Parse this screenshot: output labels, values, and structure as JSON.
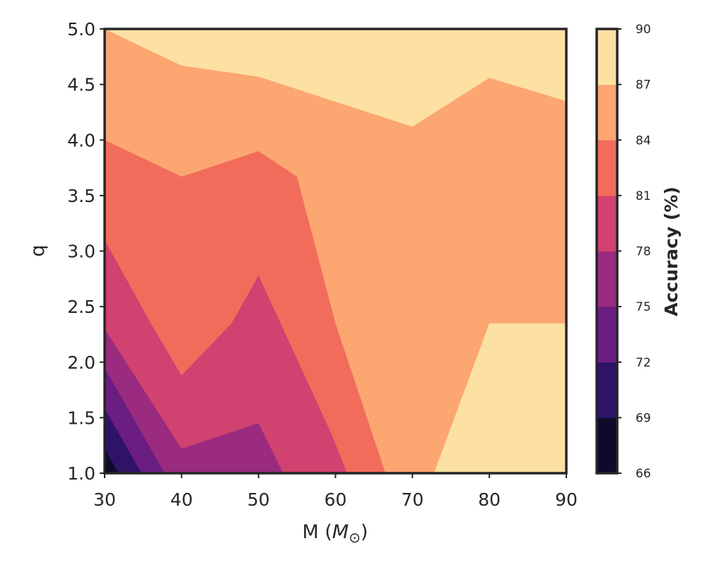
{
  "chart_data": {
    "type": "contour",
    "xlabel_main": "M (",
    "xlabel_var": "M",
    "xlabel_sub": "⊙",
    "xlabel_end": ")",
    "ylabel": "q",
    "colorbar_label": "Accuracy (%)",
    "xlim": [
      30,
      90
    ],
    "ylim": [
      1.0,
      5.0
    ],
    "x_ticks": [
      "30",
      "40",
      "50",
      "60",
      "70",
      "80",
      "90"
    ],
    "y_ticks": [
      "1.0",
      "1.5",
      "2.0",
      "2.5",
      "3.0",
      "3.5",
      "4.0",
      "4.5",
      "5.0"
    ],
    "levels": [
      66,
      69,
      72,
      75,
      78,
      81,
      84,
      87,
      90
    ],
    "level_labels": [
      "66",
      "69",
      "72",
      "75",
      "78",
      "81",
      "84",
      "87",
      "90"
    ],
    "colors": [
      "#0f0a2b",
      "#2f1366",
      "#6b1d81",
      "#9a2b7f",
      "#d0426f",
      "#f26c5c",
      "#fca672",
      "#fce1a3"
    ],
    "regions": [
      {
        "level": "87-90",
        "points": [
          [
            30,
            1
          ],
          [
            90,
            1
          ],
          [
            90,
            5
          ],
          [
            30,
            5
          ]
        ]
      },
      {
        "level": "84-87",
        "points": [
          [
            30,
            1
          ],
          [
            66.5,
            1
          ],
          [
            72.8,
            1
          ],
          [
            80,
            2.35
          ],
          [
            90,
            2.35
          ],
          [
            90,
            4.35
          ],
          [
            80,
            4.56
          ],
          [
            70,
            4.12
          ],
          [
            50,
            4.57
          ],
          [
            40,
            4.67
          ],
          [
            30,
            5.0
          ]
        ]
      },
      {
        "level": "81-84",
        "points": [
          [
            30,
            1
          ],
          [
            66.5,
            1
          ],
          [
            60,
            2.35
          ],
          [
            55,
            3.67
          ],
          [
            50,
            3.9
          ],
          [
            40,
            3.67
          ],
          [
            30,
            4.0
          ]
        ]
      },
      {
        "level": "78-81",
        "points": [
          [
            30,
            1
          ],
          [
            61.5,
            1
          ],
          [
            59.5,
            1.35
          ],
          [
            53,
            2.33
          ],
          [
            50,
            2.78
          ],
          [
            46.5,
            2.35
          ],
          [
            40,
            1.88
          ],
          [
            36,
            2.35
          ],
          [
            30,
            3.1
          ]
        ]
      },
      {
        "level": "75-78",
        "points": [
          [
            30,
            1
          ],
          [
            53.2,
            1
          ],
          [
            50,
            1.45
          ],
          [
            40,
            1.22
          ],
          [
            30,
            2.3
          ]
        ]
      },
      {
        "level": "72-75",
        "points": [
          [
            30,
            1
          ],
          [
            37.8,
            1
          ],
          [
            30,
            1.95
          ]
        ]
      },
      {
        "level": "69-72",
        "points": [
          [
            30,
            1
          ],
          [
            34.8,
            1
          ],
          [
            30,
            1.58
          ]
        ]
      },
      {
        "level": "66-69",
        "points": [
          [
            30,
            1
          ],
          [
            31.8,
            1
          ],
          [
            30,
            1.22
          ]
        ]
      }
    ]
  }
}
